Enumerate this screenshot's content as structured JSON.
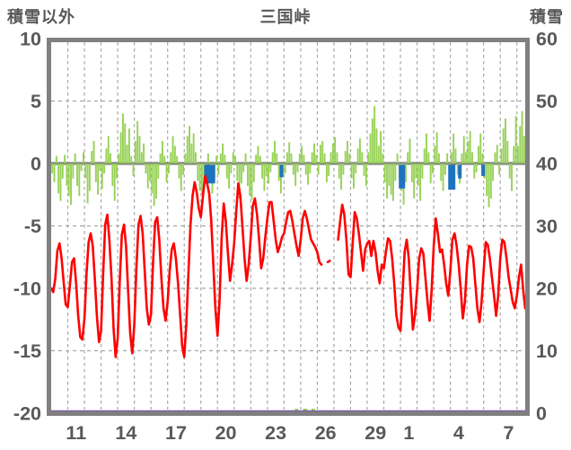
{
  "header": {
    "left_axis_title": "積雪以外",
    "chart_title": "三国峠",
    "right_axis_title": "積雪"
  },
  "chart_data": {
    "type": "composite-bar-line",
    "title": "三国峠",
    "left_axis": {
      "label": "積雪以外",
      "min": -20,
      "max": 10,
      "ticks": [
        10,
        5,
        0,
        -5,
        -10,
        -15,
        -20
      ]
    },
    "right_axis": {
      "label": "積雪",
      "min": 0,
      "max": 60,
      "ticks": [
        60,
        50,
        40,
        30,
        20,
        10,
        0
      ]
    },
    "x_axis": {
      "tick_labels": [
        "11",
        "14",
        "17",
        "20",
        "23",
        "26",
        "29",
        "1",
        "4",
        "7"
      ],
      "tick_day_index": [
        1,
        4,
        7,
        10,
        13,
        16,
        19,
        21,
        24,
        27
      ],
      "total_days": 28.5,
      "gridline_every_days": 1
    },
    "grid": {
      "h_dashed_at": [
        5,
        -5,
        -10,
        -15
      ],
      "zero_line_at": 0
    },
    "colors": {
      "green": "#97D156",
      "red": "#FF0000",
      "blue": "#1F72C0",
      "purple": "#7A5CA8",
      "axis_gray": "#808080",
      "grid_gray": "#A6A6A6",
      "text_gray": "#595959"
    },
    "series": {
      "green_bars": {
        "name": "green-bars",
        "color": "#97D156",
        "start_day": 0,
        "step_days": 0.125,
        "values": [
          -0.8,
          -1.5,
          0.6,
          -2.4,
          -3.0,
          -1.2,
          0.7,
          -1.8,
          -2.6,
          -3.3,
          -1.2,
          0.8,
          -1.8,
          -2.6,
          -0.6,
          0.9,
          -1.2,
          -3.2,
          -2.2,
          1.0,
          1.8,
          -1.5,
          -2.5,
          -0.6,
          -2.0,
          -0.8,
          1.2,
          2.2,
          0.8,
          -1.8,
          -3.0,
          -1.2,
          0.8,
          2.5,
          4.0,
          3.2,
          1.5,
          2.8,
          0.6,
          -1.0,
          1.8,
          3.4,
          2.2,
          0.9,
          1.6,
          -0.8,
          -2.0,
          -1.4,
          -2.4,
          -3.4,
          -2.8,
          -1.2,
          0.8,
          1.8,
          0.6,
          -1.5,
          -0.8,
          0.9,
          2.2,
          1.4,
          0.6,
          -1.2,
          -2.2,
          -0.9,
          0.8,
          2.2,
          3.0,
          1.6,
          2.4,
          0.9,
          -1.4,
          -2.2,
          -2.5,
          -1.8,
          -0.9,
          0.8,
          -1.5,
          -2.4,
          -1.2,
          0.6,
          -0.9,
          0.8,
          1.6,
          0.7,
          -1.2,
          -2.0,
          -0.8,
          0.9,
          0.6,
          -1.4,
          -2.8,
          -1.6,
          -0.7,
          0.8,
          -1.8,
          -2.6,
          -2.9,
          -1.5,
          0.7,
          1.4,
          0.6,
          -1.2,
          -2.2,
          -1.0,
          -1.6,
          -0.7,
          0.9,
          1.8,
          0.8,
          -1.4,
          -2.4,
          -1.1,
          -0.8,
          0.9,
          1.7,
          0.8,
          -0.9,
          -1.8,
          -0.7,
          0.8,
          1.4,
          0.7,
          -0.9,
          -1.7,
          -0.8,
          0.9,
          1.6,
          0.7,
          -0.9,
          1.5,
          1.8,
          0.8,
          -1.5,
          -1.0,
          0.9,
          1.6,
          2.1,
          0.9,
          -1.2,
          -2.1,
          -0.9,
          1.0,
          1.8,
          0.8,
          -1.2,
          -2.0,
          -0.8,
          1.2,
          2.0,
          0.9,
          -1.0,
          -1.8,
          0.9,
          2.4,
          3.6,
          4.6,
          2.8,
          1.4,
          2.6,
          0.8,
          -1.5,
          -2.8,
          -1.8,
          -2.5,
          -3.0,
          -1.4,
          0.8,
          -1.2,
          -2.2,
          -3.3,
          -1.5,
          0.9,
          2.0,
          -1.5,
          -2.8,
          -1.2,
          -1.8,
          -3.0,
          -1.2,
          1.2,
          2.4,
          0.9,
          -1.6,
          -0.8,
          1.4,
          2.5,
          0.8,
          -1.4,
          -2.2,
          -0.9,
          0.8,
          -1.2,
          0.9,
          2.4,
          1.2,
          -0.9,
          -1.6,
          0.8,
          2.2,
          0.9,
          1.8,
          2.6,
          0.9,
          -1.2,
          -0.7,
          1.4,
          2.4,
          0.8,
          -1.2,
          -2.6,
          -3.5,
          -2.8,
          -1.4,
          0.9,
          1.5,
          -0.9,
          1.2,
          2.8,
          3.6,
          1.8,
          -1.2,
          -2.2,
          1.4,
          3.8,
          1.4,
          3.0,
          4.2,
          2.2,
          3.8
        ]
      },
      "blue_bars": {
        "name": "blue-bars",
        "color": "#1F72C0",
        "segments": [
          {
            "start": 9.2,
            "end": 9.86,
            "value": -1.6
          },
          {
            "start": 13.74,
            "end": 13.95,
            "value": -1.1
          },
          {
            "start": 20.9,
            "end": 21.28,
            "value": -2.0
          },
          {
            "start": 23.87,
            "end": 24.3,
            "value": -2.1
          },
          {
            "start": 24.46,
            "end": 24.68,
            "value": -1.2
          },
          {
            "start": 25.86,
            "end": 26.08,
            "value": -1.0
          }
        ]
      },
      "red_line": {
        "name": "red-line",
        "color": "#FF0000",
        "start_day": 0,
        "step_days": 0.125,
        "values": [
          -10.0,
          -10.3,
          -9.2,
          -7.0,
          -6.4,
          -7.6,
          -9.5,
          -11.3,
          -11.5,
          -9.8,
          -7.9,
          -7.6,
          -9.6,
          -12.2,
          -13.9,
          -14.1,
          -12.4,
          -8.8,
          -6.3,
          -5.6,
          -6.6,
          -9.2,
          -12.2,
          -14.3,
          -13.4,
          -8.8,
          -4.9,
          -4.1,
          -6.1,
          -9.2,
          -13.2,
          -15.5,
          -14.0,
          -9.4,
          -5.7,
          -4.9,
          -6.6,
          -10.2,
          -13.6,
          -15.2,
          -12.9,
          -8.4,
          -4.9,
          -4.2,
          -5.6,
          -8.6,
          -11.6,
          -12.9,
          -12.1,
          -7.9,
          -4.7,
          -4.3,
          -6.1,
          -9.1,
          -11.6,
          -12.6,
          -11.1,
          -8.6,
          -6.9,
          -6.4,
          -7.6,
          -9.6,
          -12.1,
          -14.6,
          -15.5,
          -12.9,
          -8.9,
          -4.9,
          -2.6,
          -1.5,
          -2.3,
          -3.6,
          -4.3,
          -2.6,
          -1.0,
          -1.6,
          -2.4,
          -4.6,
          -8.1,
          -11.6,
          -13.8,
          -10.9,
          -5.9,
          -3.2,
          -4.6,
          -7.1,
          -9.4,
          -8.1,
          -6.4,
          -3.9,
          -1.6,
          -2.6,
          -5.1,
          -7.6,
          -9.4,
          -8.1,
          -5.9,
          -3.4,
          -2.8,
          -4.1,
          -6.1,
          -8.4,
          -7.6,
          -5.9,
          -4.4,
          -3.1,
          -3.1,
          -4.6,
          -6.1,
          -7.1,
          -6.6,
          -5.9,
          -5.6,
          -4.7,
          -3.9,
          -3.8,
          -4.6,
          -5.6,
          -6.6,
          -7.4,
          -6.1,
          -4.4,
          -3.8,
          -4.4,
          -5.3,
          -6.1,
          -6.4,
          -6.7,
          -7.1,
          -7.9,
          -8.1,
          null,
          null,
          -7.9,
          -7.8,
          null,
          null,
          null,
          -6.1,
          -4.6,
          -3.3,
          -4.1,
          -6.1,
          -8.9,
          -9.1,
          -6.4,
          -3.9,
          -4.4,
          -5.6,
          -7.1,
          -8.6,
          -6.9,
          -6.4,
          -6.2,
          -7.4,
          -6.2,
          -7.1,
          -8.6,
          -9.6,
          -8.1,
          -8.4,
          -7.1,
          -6.0,
          -6.2,
          -7.6,
          -9.6,
          -12.1,
          -13.1,
          -13.4,
          -10.4,
          -7.1,
          -6.1,
          -7.6,
          -10.6,
          -13.3,
          -12.1,
          -10.1,
          -7.6,
          -6.8,
          -7.2,
          -9.1,
          -11.1,
          -12.6,
          -10.1,
          -6.6,
          -4.4,
          -5.6,
          -7.1,
          -6.9,
          -8.1,
          -9.6,
          -10.6,
          -8.6,
          -6.1,
          -5.6,
          -6.6,
          -8.1,
          -10.1,
          -12.4,
          -11.1,
          -8.1,
          -6.6,
          -6.7,
          -7.6,
          -9.6,
          -11.6,
          -12.7,
          -11.1,
          -8.6,
          -6.3,
          -6.5,
          -7.6,
          -9.1,
          -10.6,
          -12.2,
          -10.6,
          -7.6,
          -6.1,
          -6.3,
          -7.6,
          -9.1,
          -10.1,
          -11.1,
          -11.6,
          -10.6,
          -9.1,
          -8.1,
          -10.1,
          -11.6
        ]
      },
      "snow_depth": {
        "name": "snow-depth-line",
        "color": "#7A5CA8",
        "constant_value_cm": 0
      },
      "snow_marks": {
        "name": "snow-trace-marks",
        "color": "#97D156",
        "value_cm": 0.5,
        "segments": [
          [
            14.65,
            14.85
          ],
          [
            15.15,
            15.4
          ],
          [
            15.65,
            15.85
          ]
        ]
      }
    }
  }
}
